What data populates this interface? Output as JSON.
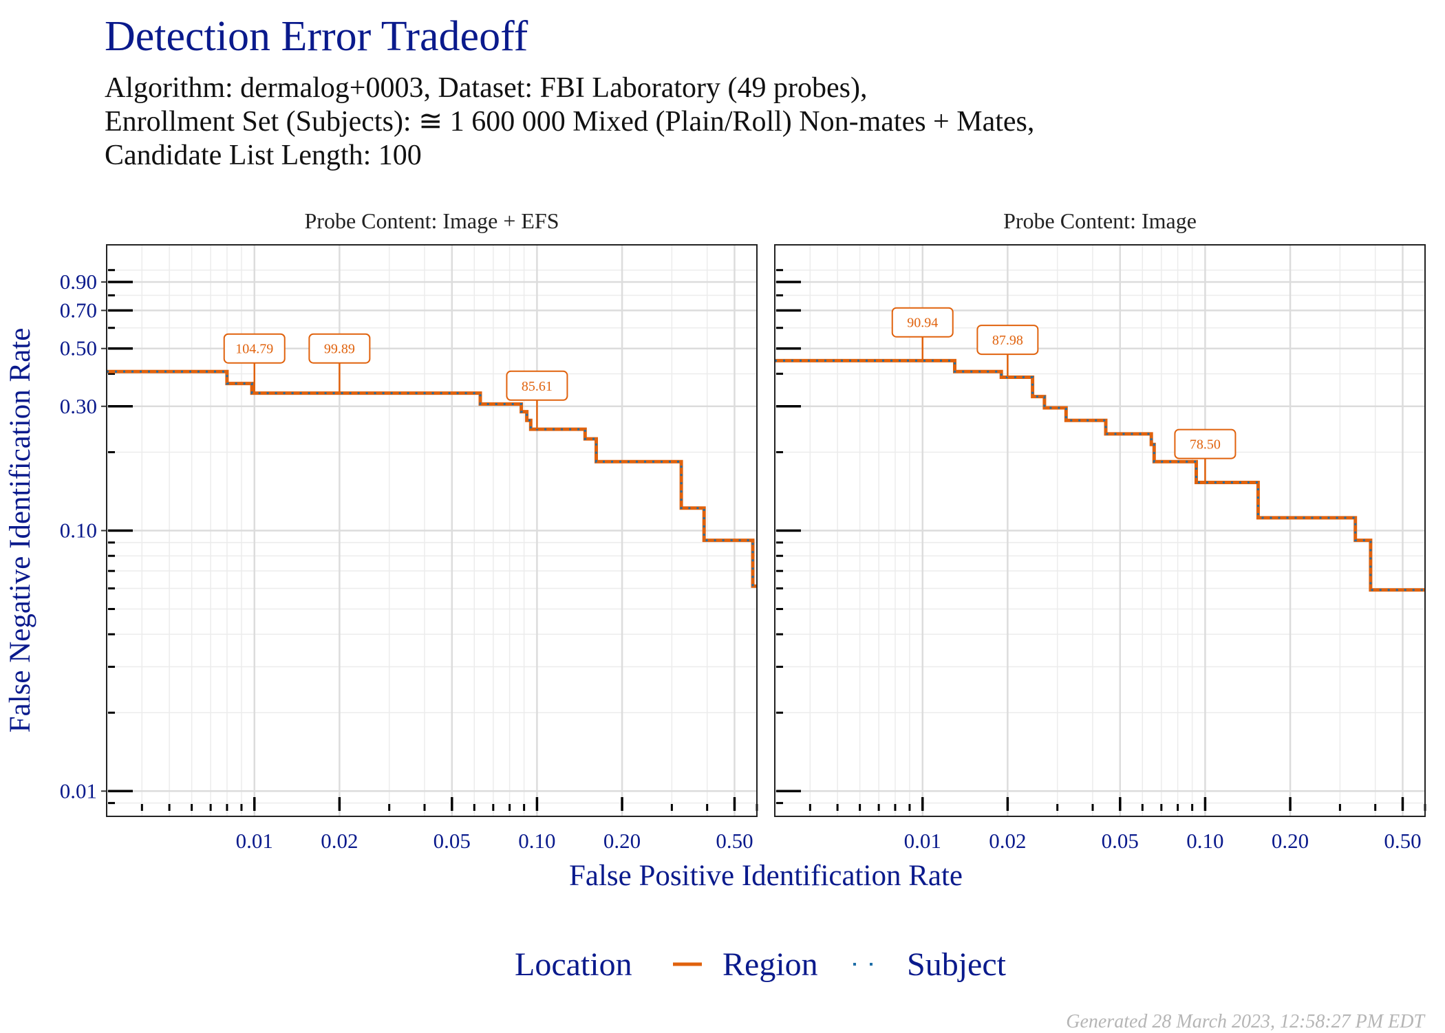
{
  "title": "Detection Error Tradeoff",
  "subtitle_lines": [
    "Algorithm: dermalog+0003, Dataset: FBI Laboratory (49 probes),",
    "Enrollment Set (Subjects): ≅ 1 600 000 Mixed (Plain/Roll) Non-mates + Mates,",
    "Candidate List Length: 100"
  ],
  "footer": "Generated 28 March 2023, 12:58:27 PM EDT",
  "colors": {
    "title": "#0a1a8c",
    "region": "#e0620d",
    "subject": "#1f6fa8",
    "grid": "#dcdcdc",
    "axis_text": "#0a1a8c"
  },
  "chart_data": {
    "type": "line",
    "xlabel": "False Positive Identification Rate",
    "ylabel": "False Negative Identification Rate",
    "x_scale": "log",
    "y_scale": "log",
    "xlim": [
      0.003,
      0.6
    ],
    "ylim": [
      0.008,
      1.25
    ],
    "x_ticks": [
      {
        "value": 0.01,
        "label": "0.01"
      },
      {
        "value": 0.02,
        "label": "0.02"
      },
      {
        "value": 0.05,
        "label": "0.05"
      },
      {
        "value": 0.1,
        "label": "0.10"
      },
      {
        "value": 0.2,
        "label": "0.20"
      },
      {
        "value": 0.5,
        "label": "0.50"
      }
    ],
    "y_ticks": [
      {
        "value": 0.01,
        "label": "0.01"
      },
      {
        "value": 0.1,
        "label": "0.10"
      },
      {
        "value": 0.3,
        "label": "0.30"
      },
      {
        "value": 0.5,
        "label": "0.50"
      },
      {
        "value": 0.7,
        "label": "0.70"
      },
      {
        "value": 0.9,
        "label": "0.90"
      }
    ],
    "legend": {
      "title": "Location",
      "position": "bottom",
      "entries": [
        {
          "name": "Region",
          "style": "solid"
        },
        {
          "name": "Subject",
          "style": "dotted"
        }
      ]
    },
    "grid": true,
    "panels": [
      {
        "facet_label": "Probe Content: Image + EFS",
        "series": [
          {
            "name": "Region",
            "points": [
              [
                0.003,
                0.408
              ],
              [
                0.008,
                0.408
              ],
              [
                0.008,
                0.367
              ],
              [
                0.0098,
                0.367
              ],
              [
                0.0098,
                0.337
              ],
              [
                0.063,
                0.337
              ],
              [
                0.063,
                0.306
              ],
              [
                0.088,
                0.306
              ],
              [
                0.088,
                0.286
              ],
              [
                0.092,
                0.286
              ],
              [
                0.092,
                0.265
              ],
              [
                0.095,
                0.265
              ],
              [
                0.095,
                0.245
              ],
              [
                0.148,
                0.245
              ],
              [
                0.148,
                0.225
              ],
              [
                0.162,
                0.225
              ],
              [
                0.162,
                0.184
              ],
              [
                0.324,
                0.184
              ],
              [
                0.324,
                0.122
              ],
              [
                0.39,
                0.122
              ],
              [
                0.39,
                0.0918
              ],
              [
                0.58,
                0.0918
              ],
              [
                0.58,
                0.0612
              ],
              [
                0.6,
                0.0612
              ]
            ]
          },
          {
            "name": "Subject",
            "points": [
              [
                0.003,
                0.408
              ],
              [
                0.008,
                0.408
              ],
              [
                0.008,
                0.367
              ],
              [
                0.0098,
                0.367
              ],
              [
                0.0098,
                0.337
              ],
              [
                0.063,
                0.337
              ],
              [
                0.063,
                0.306
              ],
              [
                0.088,
                0.306
              ],
              [
                0.088,
                0.286
              ],
              [
                0.092,
                0.286
              ],
              [
                0.092,
                0.265
              ],
              [
                0.095,
                0.265
              ],
              [
                0.095,
                0.245
              ],
              [
                0.148,
                0.245
              ],
              [
                0.148,
                0.225
              ],
              [
                0.162,
                0.225
              ],
              [
                0.162,
                0.184
              ],
              [
                0.324,
                0.184
              ],
              [
                0.324,
                0.122
              ],
              [
                0.39,
                0.122
              ],
              [
                0.39,
                0.0918
              ],
              [
                0.58,
                0.0918
              ],
              [
                0.58,
                0.0612
              ],
              [
                0.6,
                0.0612
              ]
            ]
          }
        ],
        "annotations": [
          {
            "label": "104.79",
            "x": 0.01,
            "y": 0.337,
            "label_y": 0.5
          },
          {
            "label": "99.89",
            "x": 0.02,
            "y": 0.337,
            "label_y": 0.5
          },
          {
            "label": "85.61",
            "x": 0.1,
            "y": 0.245,
            "label_y": 0.36
          }
        ]
      },
      {
        "facet_label": "Probe Content: Image",
        "series": [
          {
            "name": "Region",
            "points": [
              [
                0.003,
                0.449
              ],
              [
                0.013,
                0.449
              ],
              [
                0.013,
                0.408
              ],
              [
                0.019,
                0.408
              ],
              [
                0.019,
                0.388
              ],
              [
                0.0245,
                0.388
              ],
              [
                0.0245,
                0.327
              ],
              [
                0.027,
                0.327
              ],
              [
                0.027,
                0.296
              ],
              [
                0.0322,
                0.296
              ],
              [
                0.0322,
                0.265
              ],
              [
                0.0445,
                0.265
              ],
              [
                0.0445,
                0.235
              ],
              [
                0.0645,
                0.235
              ],
              [
                0.0645,
                0.214
              ],
              [
                0.066,
                0.214
              ],
              [
                0.066,
                0.184
              ],
              [
                0.093,
                0.184
              ],
              [
                0.093,
                0.153
              ],
              [
                0.154,
                0.153
              ],
              [
                0.154,
                0.112
              ],
              [
                0.34,
                0.112
              ],
              [
                0.34,
                0.0918
              ],
              [
                0.385,
                0.0918
              ],
              [
                0.385,
                0.0592
              ],
              [
                0.6,
                0.0592
              ]
            ]
          },
          {
            "name": "Subject",
            "points": [
              [
                0.003,
                0.449
              ],
              [
                0.013,
                0.449
              ],
              [
                0.013,
                0.408
              ],
              [
                0.019,
                0.408
              ],
              [
                0.019,
                0.388
              ],
              [
                0.0245,
                0.388
              ],
              [
                0.0245,
                0.327
              ],
              [
                0.027,
                0.327
              ],
              [
                0.027,
                0.296
              ],
              [
                0.0322,
                0.296
              ],
              [
                0.0322,
                0.265
              ],
              [
                0.0445,
                0.265
              ],
              [
                0.0445,
                0.235
              ],
              [
                0.0645,
                0.235
              ],
              [
                0.0645,
                0.214
              ],
              [
                0.066,
                0.214
              ],
              [
                0.066,
                0.184
              ],
              [
                0.093,
                0.184
              ],
              [
                0.093,
                0.153
              ],
              [
                0.154,
                0.153
              ],
              [
                0.154,
                0.112
              ],
              [
                0.34,
                0.112
              ],
              [
                0.34,
                0.0918
              ],
              [
                0.385,
                0.0918
              ],
              [
                0.385,
                0.0592
              ],
              [
                0.6,
                0.0592
              ]
            ]
          }
        ],
        "annotations": [
          {
            "label": "90.94",
            "x": 0.01,
            "y": 0.449,
            "label_y": 0.63
          },
          {
            "label": "87.98",
            "x": 0.02,
            "y": 0.388,
            "label_y": 0.54
          },
          {
            "label": "78.50",
            "x": 0.1,
            "y": 0.153,
            "label_y": 0.215
          }
        ]
      }
    ]
  }
}
